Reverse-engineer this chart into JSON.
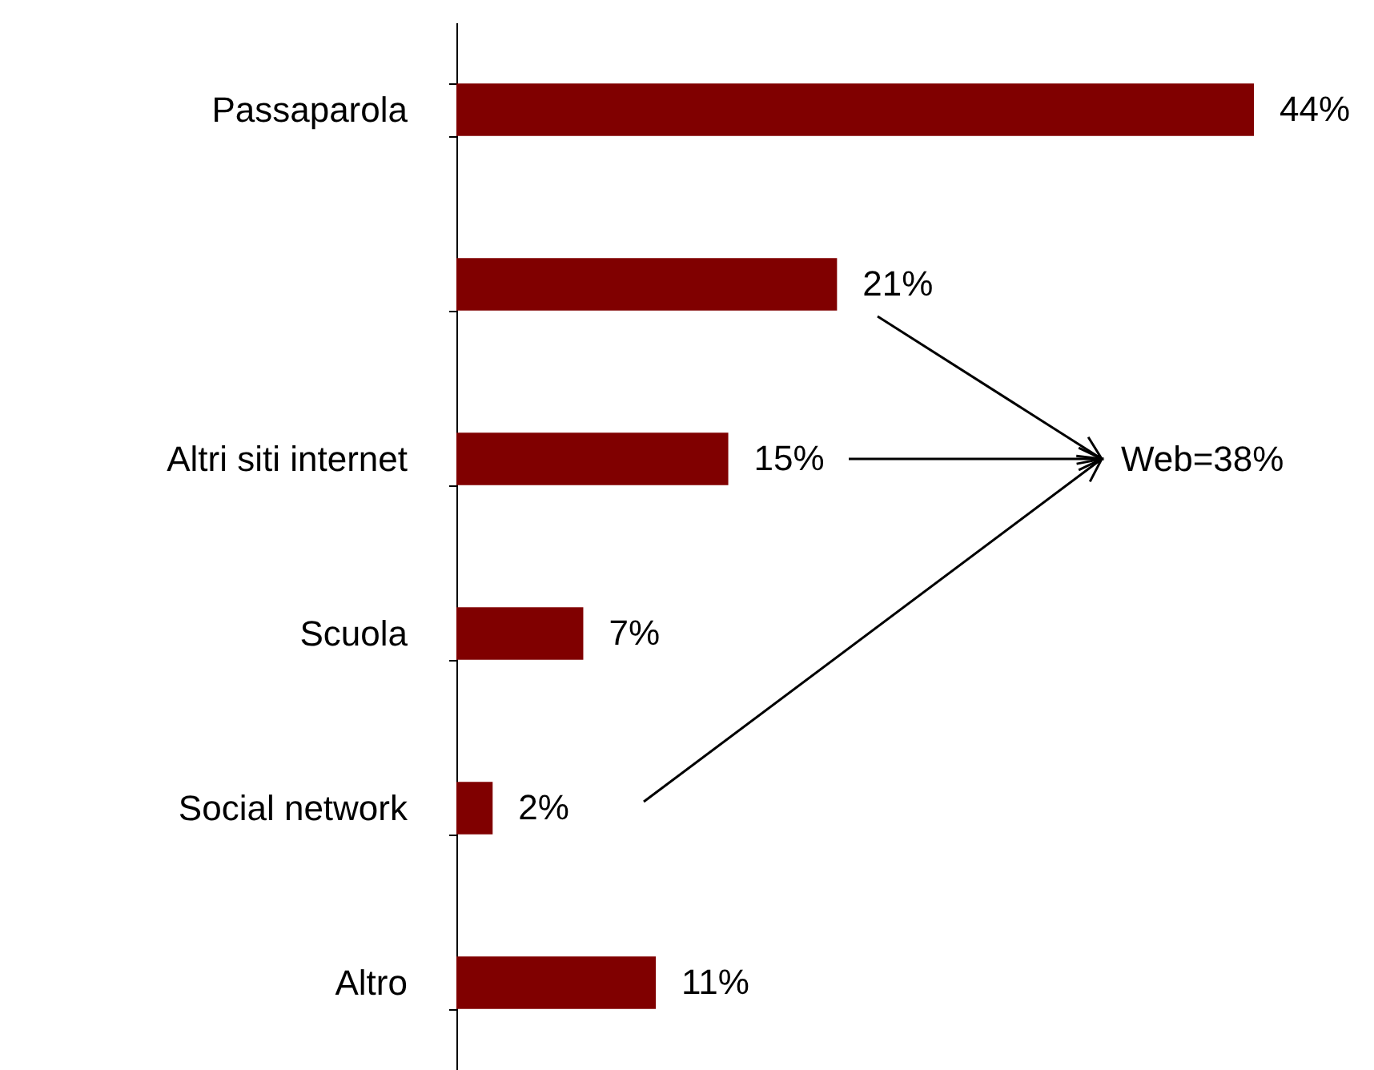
{
  "chart_data": {
    "type": "bar",
    "orientation": "horizontal",
    "categories": [
      "Passaparola",
      null,
      "Altri siti internet",
      "Scuola",
      "Social network",
      "Altro"
    ],
    "values": [
      44,
      21,
      15,
      7,
      2,
      11
    ],
    "value_labels": [
      "44%",
      "21%",
      "15%",
      "7%",
      "2%",
      "11%"
    ],
    "color": "#800000",
    "annotations": [
      "Web=38%"
    ]
  }
}
